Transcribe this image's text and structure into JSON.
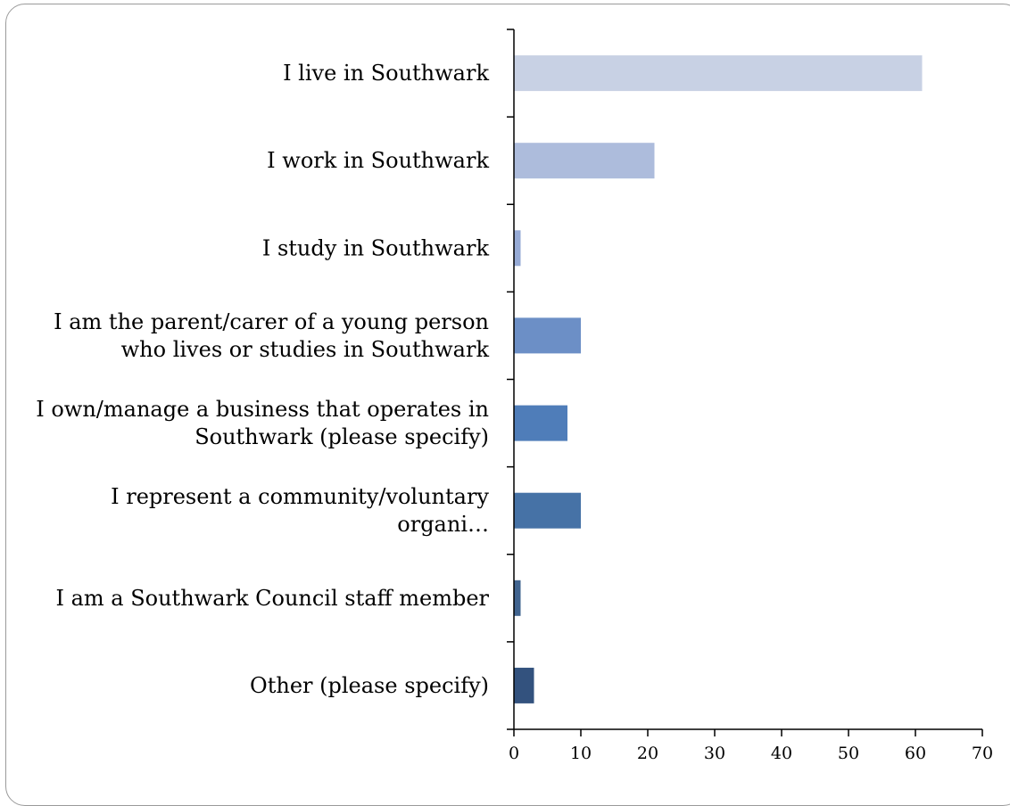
{
  "chart_data": {
    "type": "bar",
    "orientation": "horizontal",
    "categories": [
      [
        "I live in Southwark"
      ],
      [
        "I work in Southwark"
      ],
      [
        "I study in Southwark"
      ],
      [
        "I am the parent/carer of a young person",
        "who lives or studies in Southwark"
      ],
      [
        "I own/manage a business that operates in",
        "Southwark (please specify)"
      ],
      [
        "I represent a community/voluntary",
        "organi…"
      ],
      [
        "I am a Southwark Council staff member"
      ],
      [
        "Other (please specify)"
      ]
    ],
    "values": [
      61,
      21,
      1,
      10,
      8,
      10,
      1,
      3
    ],
    "colors": [
      "#c8d1e4",
      "#adbcdc",
      "#97abd6",
      "#6c8fc6",
      "#4f7db9",
      "#4672a6",
      "#41648f",
      "#33527e"
    ],
    "xlim": [
      0,
      70
    ],
    "xticks": [
      0,
      10,
      20,
      30,
      40,
      50,
      60,
      70
    ],
    "title": "",
    "xlabel": "",
    "ylabel": "",
    "grid": false,
    "legend": "none"
  }
}
